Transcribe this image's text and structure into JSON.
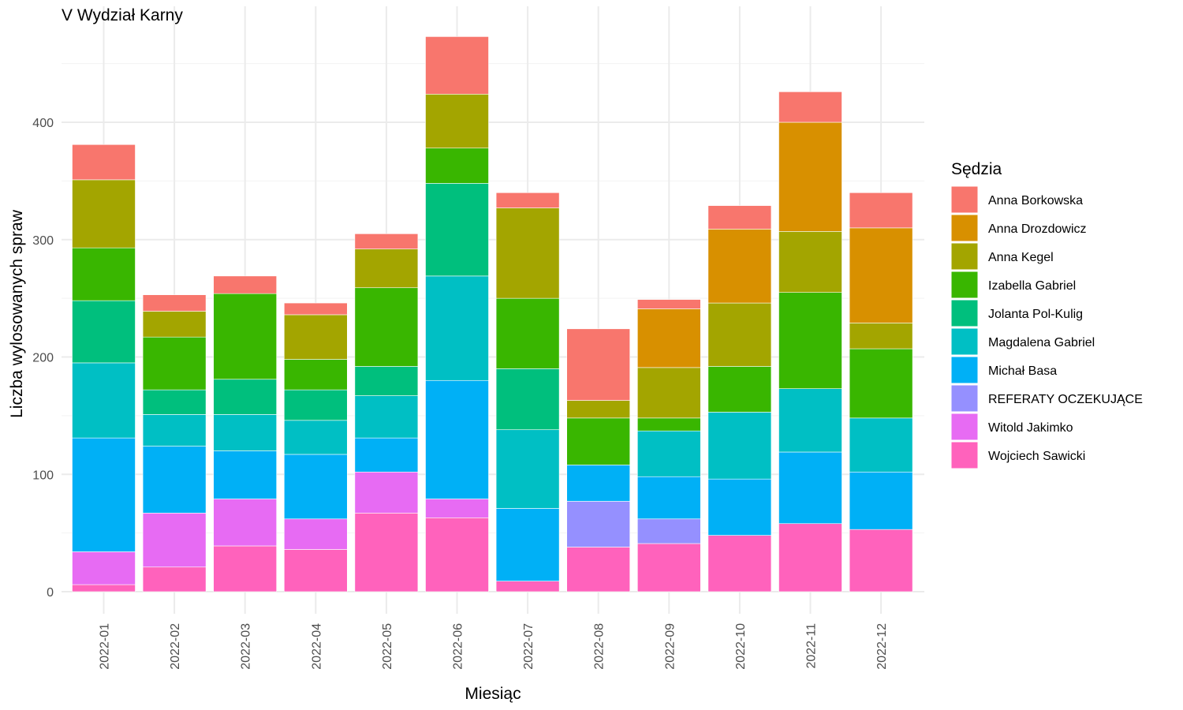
{
  "chart_data": {
    "type": "bar",
    "stacked": true,
    "title": "V Wydział Karny",
    "xlabel": "Miesiąc",
    "ylabel": "Liczba wylosowanych spraw",
    "ylim": [
      0,
      480
    ],
    "yticks": [
      0,
      100,
      200,
      300,
      400
    ],
    "grid": true,
    "legend_title": "Sędzia",
    "legend_position": "right",
    "categories": [
      "2022-01",
      "2022-02",
      "2022-03",
      "2022-04",
      "2022-05",
      "2022-06",
      "2022-07",
      "2022-08",
      "2022-09",
      "2022-10",
      "2022-11",
      "2022-12"
    ],
    "series": [
      {
        "name": "Anna Borkowska",
        "color": "#F8766D",
        "values": [
          30,
          14,
          15,
          10,
          13,
          49,
          13,
          61,
          8,
          20,
          26,
          30
        ]
      },
      {
        "name": "Anna Drozdowicz",
        "color": "#D89000",
        "values": [
          0,
          0,
          0,
          0,
          0,
          0,
          0,
          0,
          50,
          63,
          93,
          81
        ]
      },
      {
        "name": "Anna Kegel",
        "color": "#A3A500",
        "values": [
          58,
          22,
          0,
          38,
          33,
          46,
          77,
          15,
          43,
          54,
          52,
          22
        ]
      },
      {
        "name": "Izabella Gabriel",
        "color": "#39B600",
        "values": [
          45,
          45,
          73,
          26,
          67,
          30,
          60,
          40,
          11,
          39,
          82,
          59
        ]
      },
      {
        "name": "Jolanta Pol-Kulig",
        "color": "#00BF7D",
        "values": [
          53,
          21,
          30,
          26,
          25,
          79,
          52,
          0,
          0,
          0,
          0,
          0
        ]
      },
      {
        "name": "Magdalena Gabriel",
        "color": "#00BFC4",
        "values": [
          64,
          27,
          31,
          29,
          36,
          89,
          67,
          0,
          39,
          57,
          54,
          46
        ]
      },
      {
        "name": "Michał Basa",
        "color": "#00B0F6",
        "values": [
          97,
          57,
          41,
          55,
          29,
          101,
          62,
          31,
          36,
          48,
          61,
          49
        ]
      },
      {
        "name": "REFERATY OCZEKUJĄCE",
        "color": "#9590FF",
        "values": [
          0,
          0,
          0,
          0,
          0,
          0,
          0,
          39,
          21,
          0,
          0,
          0
        ]
      },
      {
        "name": "Witold Jakimko",
        "color": "#E76BF3",
        "values": [
          28,
          46,
          40,
          26,
          35,
          16,
          0,
          0,
          0,
          0,
          0,
          0
        ]
      },
      {
        "name": "Wojciech Sawicki",
        "color": "#FF62BC",
        "values": [
          6,
          21,
          39,
          36,
          67,
          63,
          9,
          38,
          41,
          48,
          58,
          53
        ]
      }
    ]
  }
}
